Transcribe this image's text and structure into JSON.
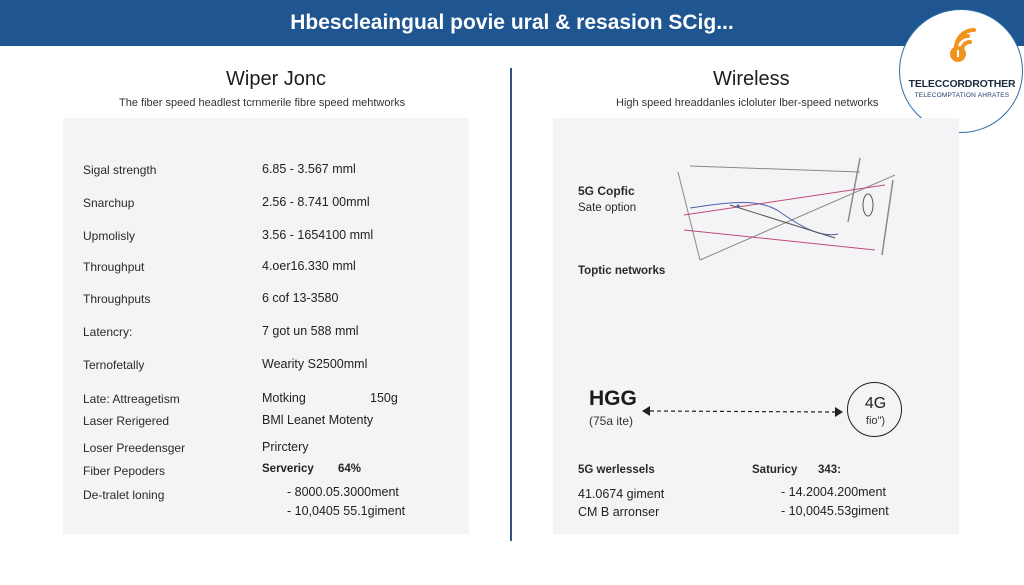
{
  "header": {
    "title": "Hbescleaingual povie ural & resasion SCig..."
  },
  "logo": {
    "name": "TELECCORDROTHER",
    "sub": "TELECOMPTATION AHRATES",
    "icon": "wifi-signal-icon"
  },
  "left": {
    "title": "Wiper Jonc",
    "subtitle": "The fiber speed headlest tcrnmerile fibre speed mehtworks",
    "rows": [
      {
        "label": "Sigal strength",
        "value": "6.85 - 3.567 mml"
      },
      {
        "label": "Snarchup",
        "value": "2.56 - 8.741 00mml"
      },
      {
        "label": "Upmolisly",
        "value": "3.56 - 1654100 mml"
      },
      {
        "label": "Throughput",
        "value": "4.oer16.330 mml"
      },
      {
        "label": "Throughputs",
        "value": "6 cof 13-3580"
      },
      {
        "label": "Latencry:",
        "value": "7 got un 588 mml"
      },
      {
        "label": "Ternofetally",
        "value": "Wearity S2500mml"
      },
      {
        "label": "Late: Attreagetism",
        "value": "Motking",
        "value2": "150g"
      },
      {
        "label": "Laser Rerigered",
        "value": "BMl Leanet Motenty"
      },
      {
        "label": "Loser Preedensger",
        "value": "Prirctery"
      },
      {
        "label": "Fiber Pepoders",
        "value": "Servericy",
        "value2": "64%"
      },
      {
        "label": "De-tralet loning",
        "value": "- 8000.05.3000ment"
      }
    ],
    "extra_value": "- 10,0405 55.1giment"
  },
  "right": {
    "title": "Wireless",
    "subtitle": "High speed hreaddanles icloluter lber-speed networks",
    "label_5g_copfic": "5G Copfic",
    "label_sate_option": "Sate option",
    "label_toptic": "Toptic networks",
    "hgg": {
      "label": "HGG",
      "sub": "(75a ite)"
    },
    "circle": {
      "label": "4G",
      "sub": "fio\")"
    },
    "bottom": {
      "col1_header": "5G werlessels",
      "col1_line1": "41.0674 giment",
      "col1_line2": "CM B arronser",
      "col2_header": "Saturicy",
      "col2_header_value": "343:",
      "col2_line1": "- 14.2004.200ment",
      "col2_line2": "- 10,0045.53giment"
    }
  },
  "colors": {
    "banner": "#1f5692",
    "logo_orange": "#f0941f",
    "diagram_pink": "#c24a7a",
    "diagram_blue": "#4a5fb0"
  }
}
